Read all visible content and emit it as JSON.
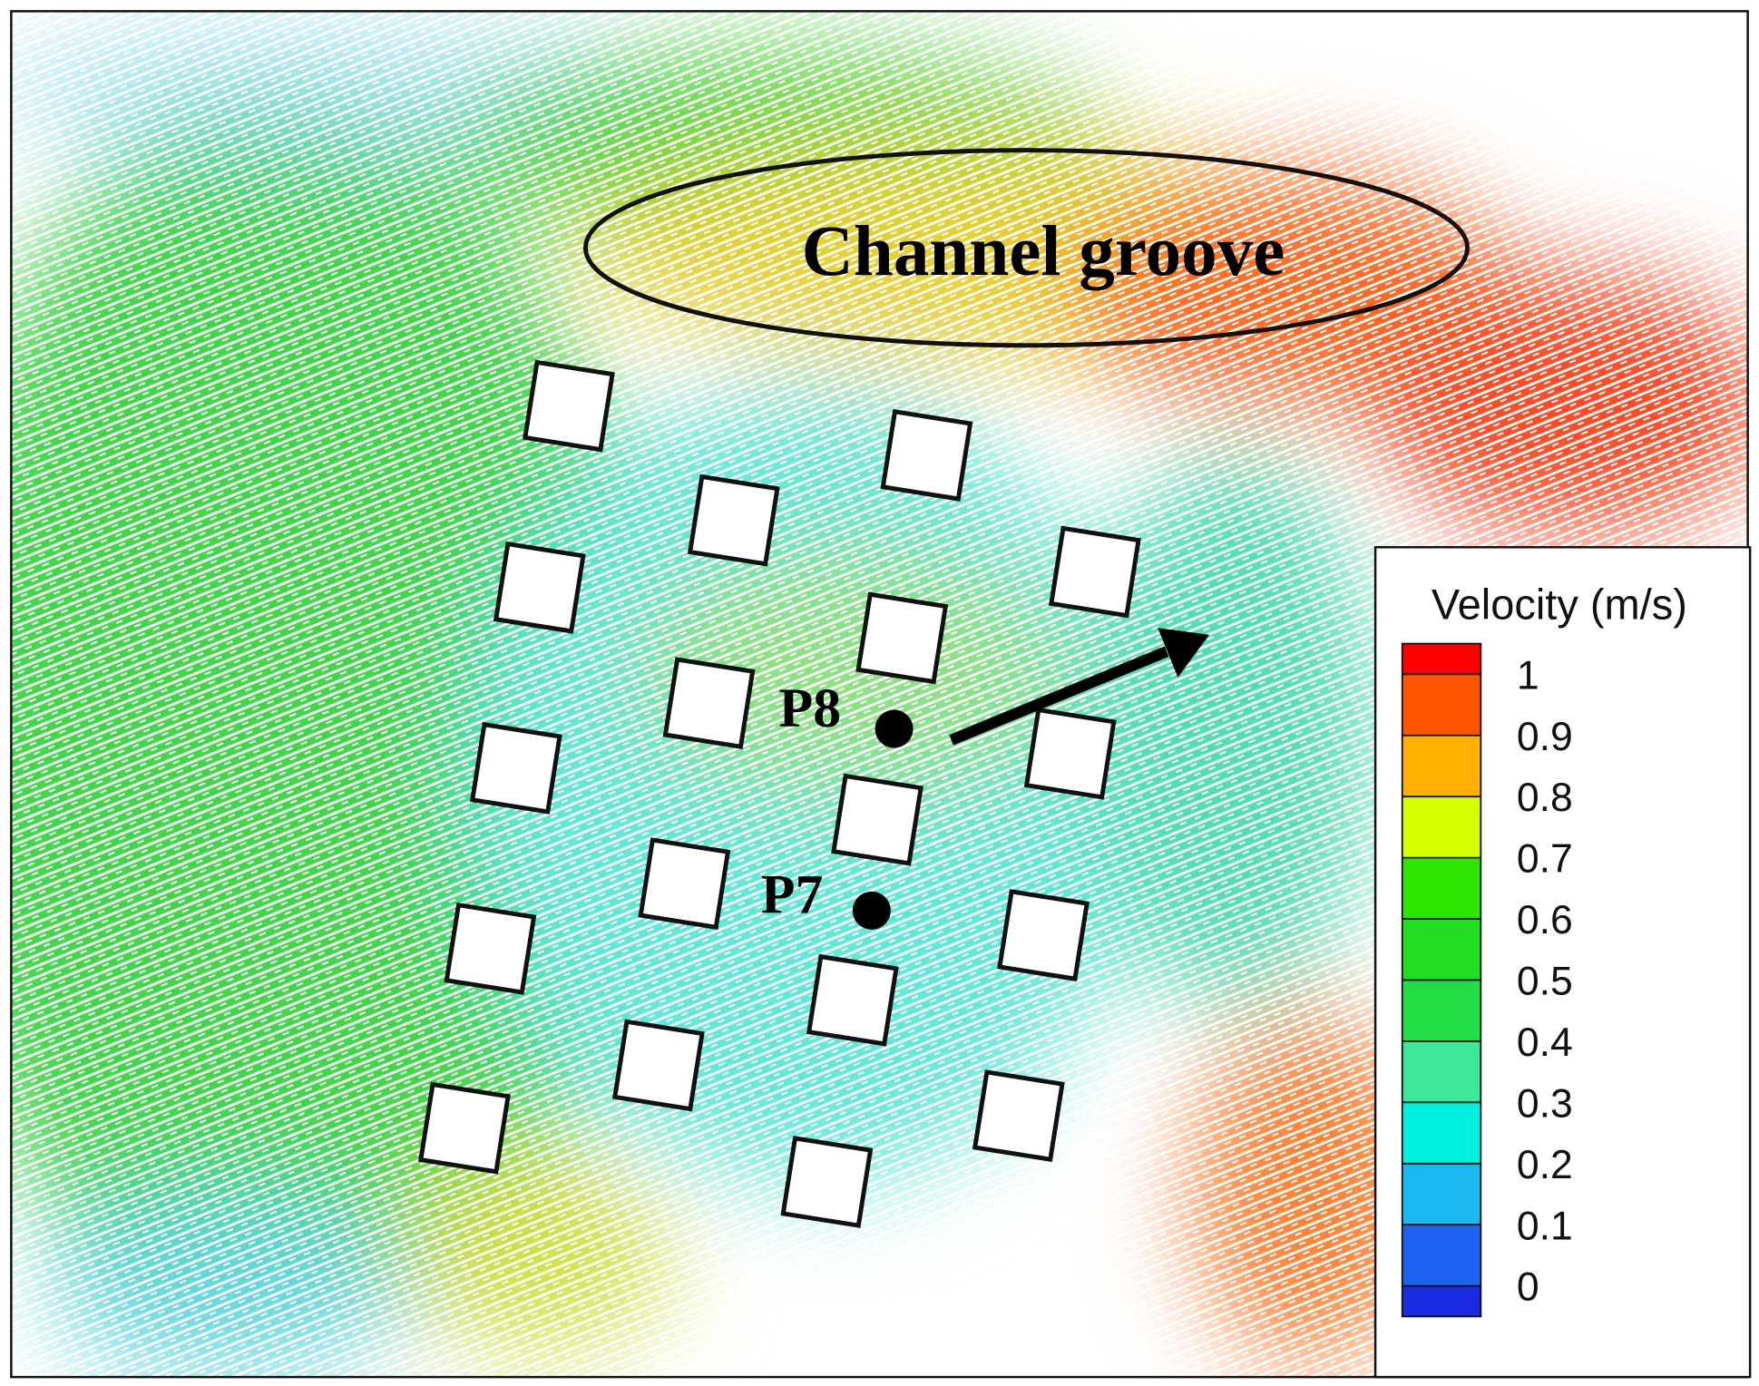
{
  "figure": {
    "annotation": "Channel groove",
    "points": [
      "P8",
      "P7"
    ],
    "legend": {
      "title": "Velocity (m/s)",
      "lim": [
        -0.05,
        1.05
      ],
      "ticks": [
        1,
        0.9,
        0.8,
        0.7,
        0.6,
        0.5,
        0.4,
        0.3,
        0.2,
        0.1,
        0
      ],
      "colors": [
        "#ff0000",
        "#ff5500",
        "#ffb000",
        "#d8ff00",
        "#2ee600",
        "#22dd22",
        "#22dd44",
        "#3ee89a",
        "#00f0e0",
        "#19b8ef",
        "#1e64f0",
        "#1a2ae0"
      ]
    }
  }
}
